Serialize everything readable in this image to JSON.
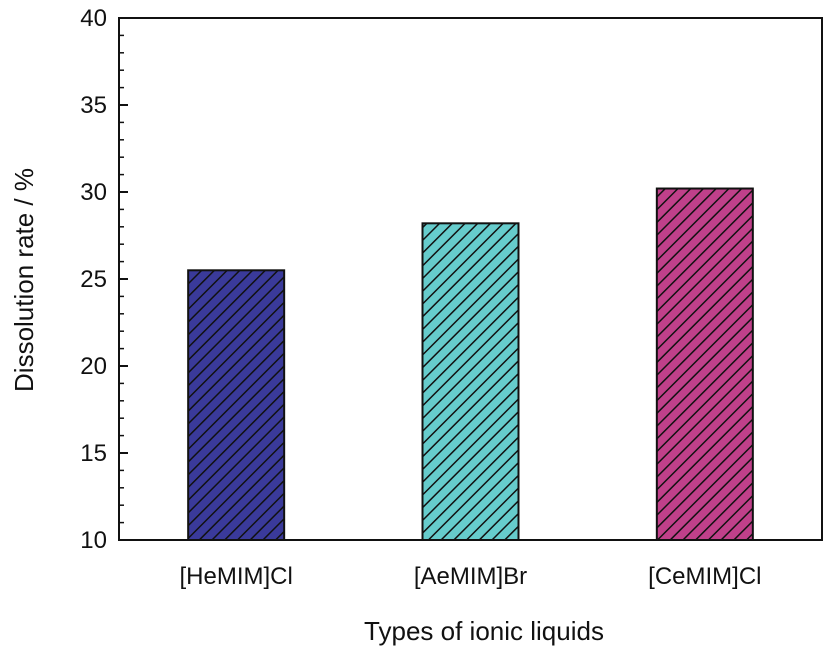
{
  "chart_data": {
    "type": "bar",
    "title": "",
    "xlabel": "Types of ionic liquids",
    "ylabel": "Dissolution rate / %",
    "categories": [
      "[HeMIM]Cl",
      "[AeMIM]Br",
      "[CeMIM]Cl"
    ],
    "values": [
      25.5,
      28.2,
      30.2
    ],
    "ylim": [
      10,
      40
    ],
    "yticks": [
      "10",
      "15",
      "20",
      "25",
      "30",
      "35",
      "40"
    ],
    "colors": [
      "#3a3a9a",
      "#66cccc",
      "#c0408a"
    ],
    "hatch": "diagonal",
    "grid": false,
    "legend": "none"
  }
}
